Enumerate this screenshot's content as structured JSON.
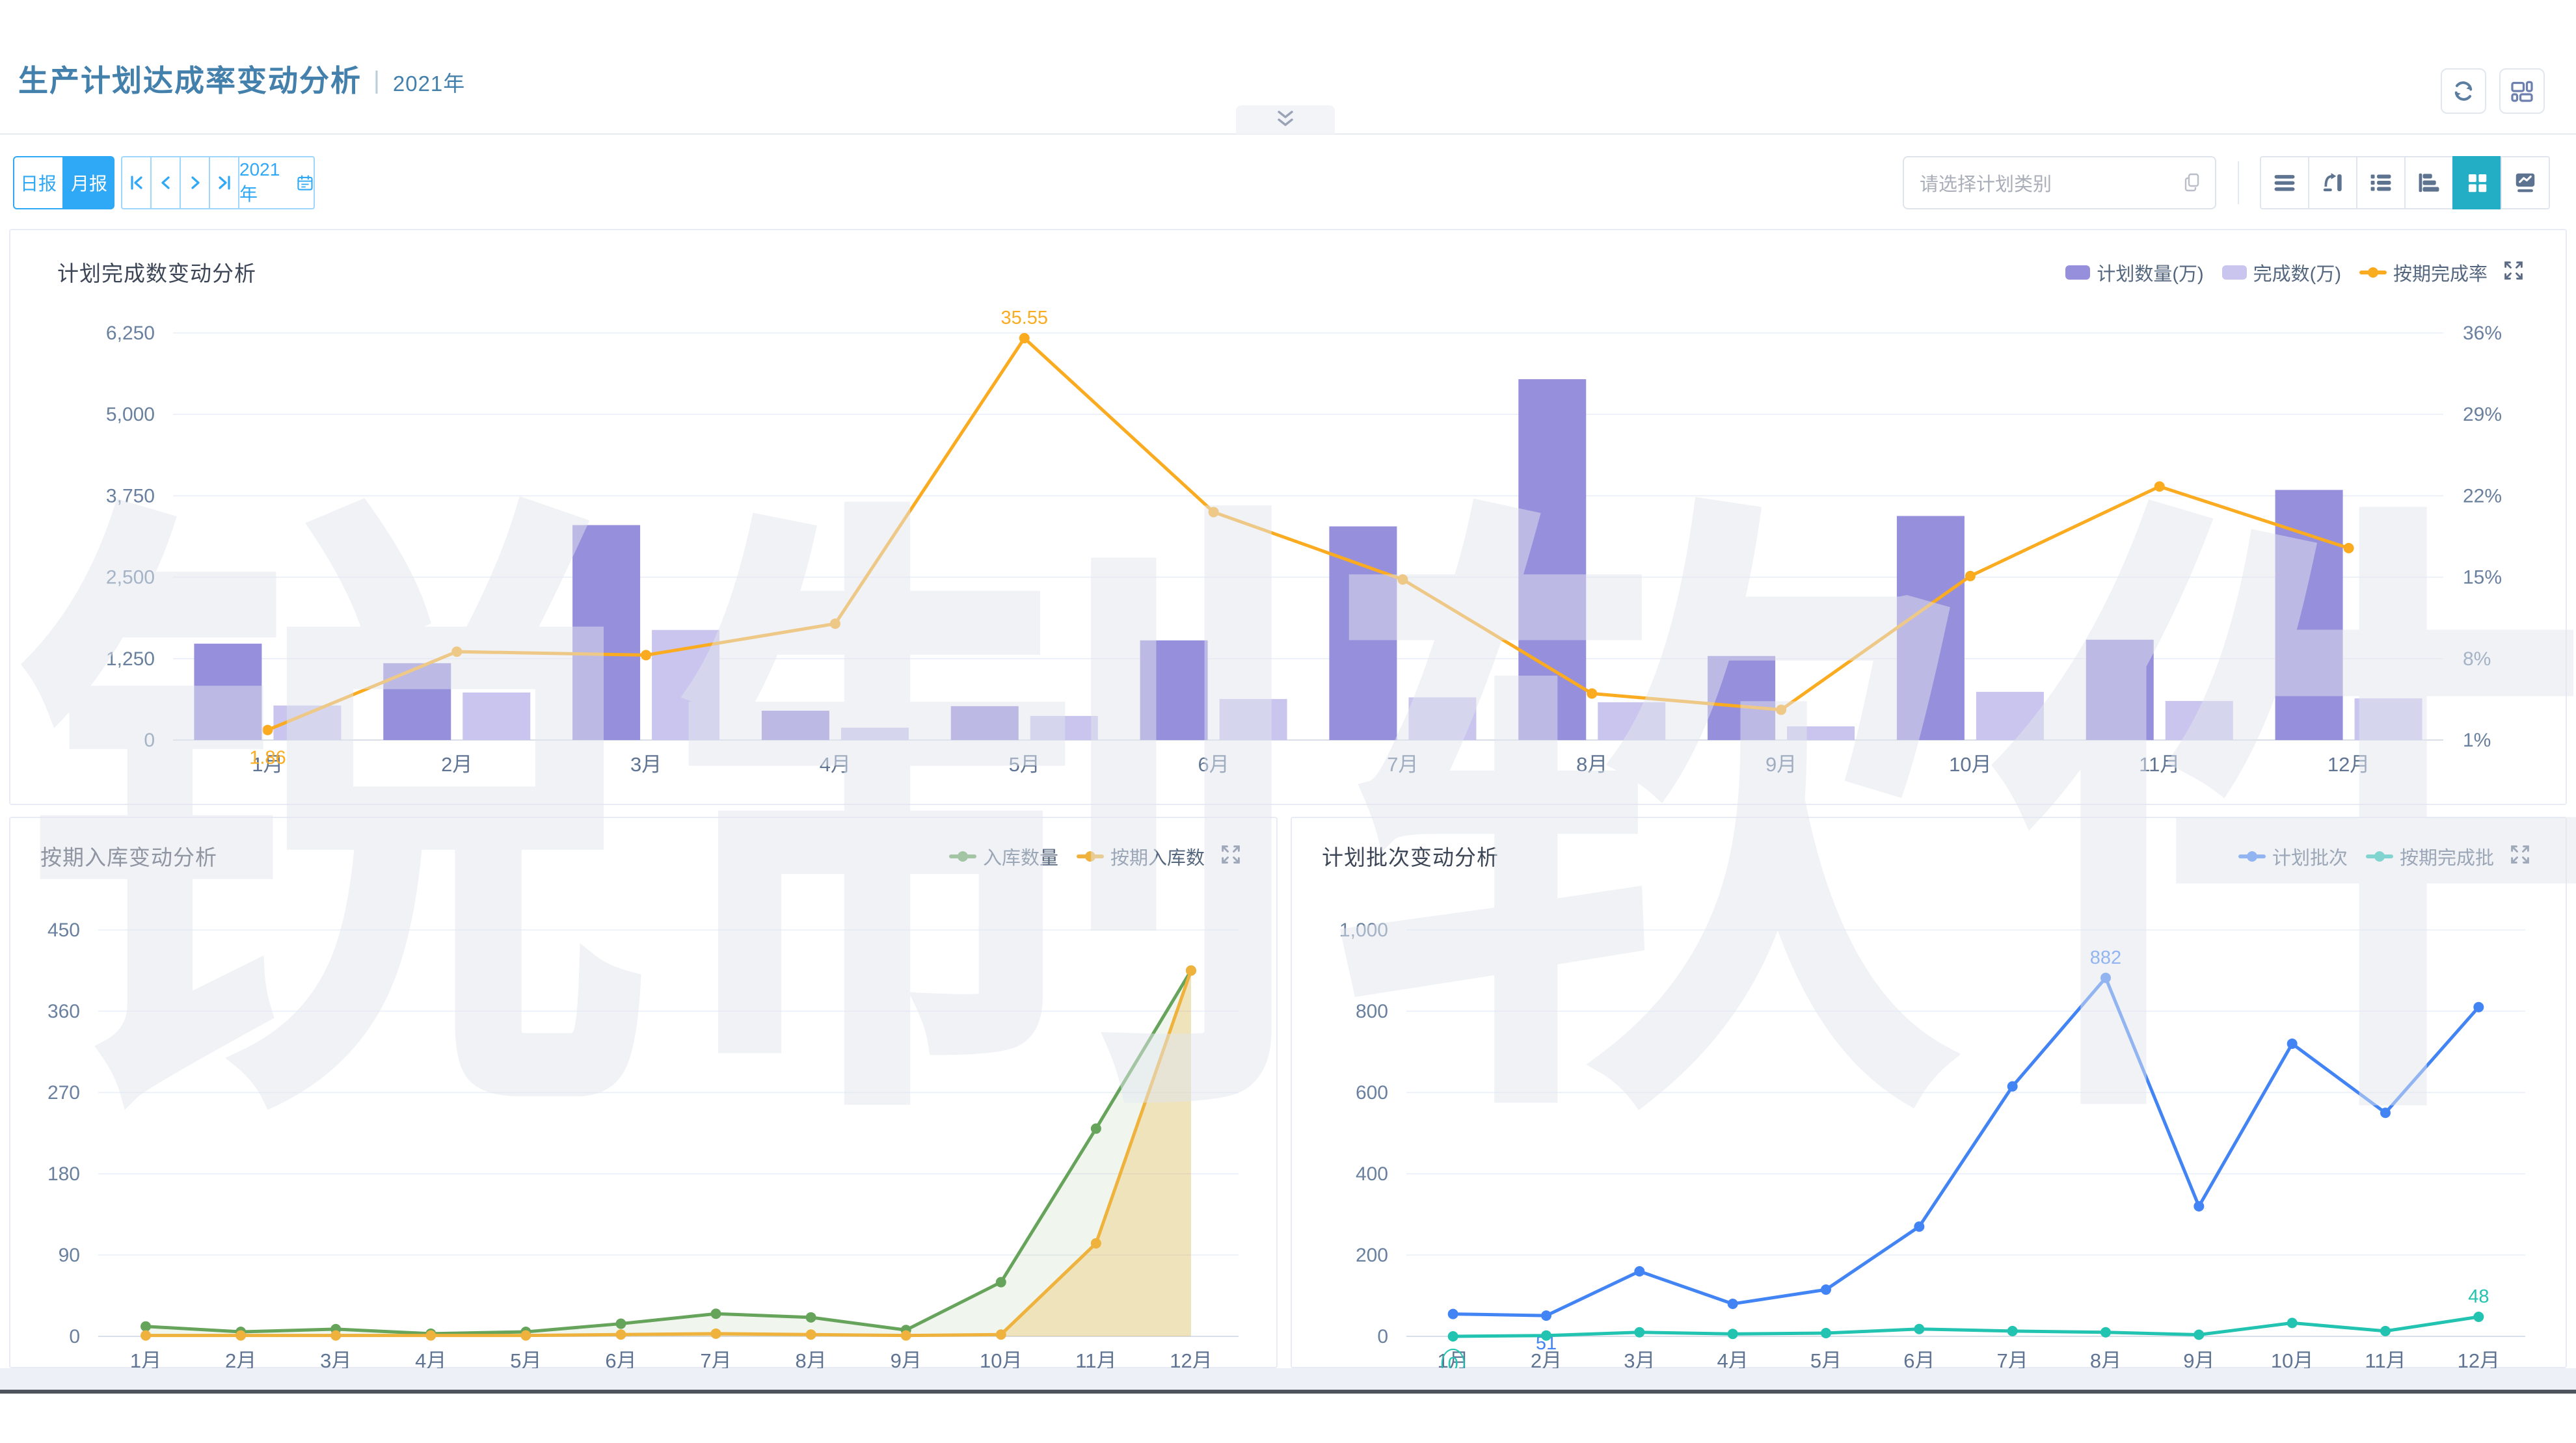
{
  "watermark": {
    "text": "锐制软件"
  },
  "header": {
    "title": "生产计划达成率变动分析",
    "separator": "|",
    "year": "2021年"
  },
  "toolbar": {
    "report_tabs": [
      {
        "label": "日报"
      },
      {
        "label": "月报"
      }
    ],
    "active_report_tab": "月报",
    "pagination_icons": [
      "first-page-icon",
      "prev-page-icon",
      "next-page-icon",
      "last-page-icon"
    ],
    "year_picker": "2021年",
    "select_placeholder": "请选择计划类别",
    "view_switcher_icons": [
      "menu-lines-icon",
      "flip-chart-icon",
      "list-icon",
      "hbar-chart-icon",
      "grid-icon",
      "line-chart-icon"
    ],
    "view_switcher_active": "grid-icon",
    "accent_blue": "#2fa8f6",
    "accent_teal": "#23aec5"
  },
  "chart_data": [
    {
      "id": "completion",
      "type": "bar",
      "title": "计划完成数变动分析",
      "categories": [
        "1月",
        "2月",
        "3月",
        "4月",
        "5月",
        "6月",
        "7月",
        "8月",
        "9月",
        "10月",
        "11月",
        "12月"
      ],
      "left_axis": {
        "min": 0,
        "max": 6250,
        "ticks": [
          "6,250",
          "5,000",
          "3,750",
          "2,500",
          "1,250",
          "0"
        ]
      },
      "right_axis": {
        "min": 1,
        "max": 36,
        "ticks": [
          "36%",
          "29%",
          "22%",
          "15%",
          "8%",
          "1%"
        ]
      },
      "series": [
        {
          "name": "计划数量(万)",
          "type": "bar",
          "color": "#968fdb",
          "values": [
            1480,
            1180,
            3300,
            450,
            520,
            1530,
            3280,
            5540,
            1290,
            3440,
            1540,
            3840
          ]
        },
        {
          "name": "完成数(万)",
          "type": "bar",
          "color": "#c9c5ee",
          "values": [
            530,
            730,
            1690,
            190,
            370,
            630,
            655,
            580,
            210,
            740,
            600,
            640
          ]
        },
        {
          "name": "按期完成率",
          "type": "line",
          "axis": "right",
          "color": "#fbab1f",
          "show_minmax": true,
          "values": [
            1.86,
            8.6,
            8.3,
            11,
            35.55,
            20.6,
            14.8,
            5,
            3.6,
            15.1,
            22.8,
            17.5
          ]
        }
      ]
    },
    {
      "id": "warehouse",
      "type": "line",
      "title": "按期入库变动分析",
      "categories": [
        "1月",
        "2月",
        "3月",
        "4月",
        "5月",
        "6月",
        "7月",
        "8月",
        "9月",
        "10月",
        "11月",
        "12月"
      ],
      "left_axis": {
        "min": 0,
        "max": 450,
        "ticks": [
          "450",
          "360",
          "270",
          "180",
          "90",
          "0"
        ]
      },
      "series": [
        {
          "name": "入库数量",
          "type": "line",
          "color": "#67a45b",
          "area": "rgba(103,164,91,0.10)",
          "values": [
            11,
            5,
            8,
            3,
            5,
            14,
            25,
            21,
            7,
            60,
            230,
            405
          ]
        },
        {
          "name": "按期入库数",
          "type": "line",
          "color": "#eeb23d",
          "area": "rgba(238,178,61,0.28)",
          "values": [
            1,
            1,
            1,
            1,
            1,
            2,
            3,
            2,
            1,
            2,
            103,
            405
          ]
        }
      ]
    },
    {
      "id": "batches",
      "type": "line",
      "title": "计划批次变动分析",
      "categories": [
        "1月",
        "2月",
        "3月",
        "4月",
        "5月",
        "6月",
        "7月",
        "8月",
        "9月",
        "10月",
        "11月",
        "12月"
      ],
      "left_axis": {
        "min": 0,
        "max": 1000,
        "ticks": [
          "1,000",
          "800",
          "600",
          "400",
          "200",
          "0"
        ]
      },
      "series": [
        {
          "name": "计划批次",
          "type": "line",
          "color": "#4384f4",
          "show_minmax": true,
          "values": [
            55,
            51,
            160,
            80,
            115,
            270,
            615,
            882,
            320,
            720,
            550,
            810
          ]
        },
        {
          "name": "按期完成批",
          "type": "line",
          "color": "#23c3b2",
          "show_minmax": true,
          "circle_min": true,
          "values": [
            0,
            2,
            10,
            6,
            8,
            18,
            13,
            10,
            4,
            33,
            13,
            48
          ]
        }
      ]
    }
  ]
}
